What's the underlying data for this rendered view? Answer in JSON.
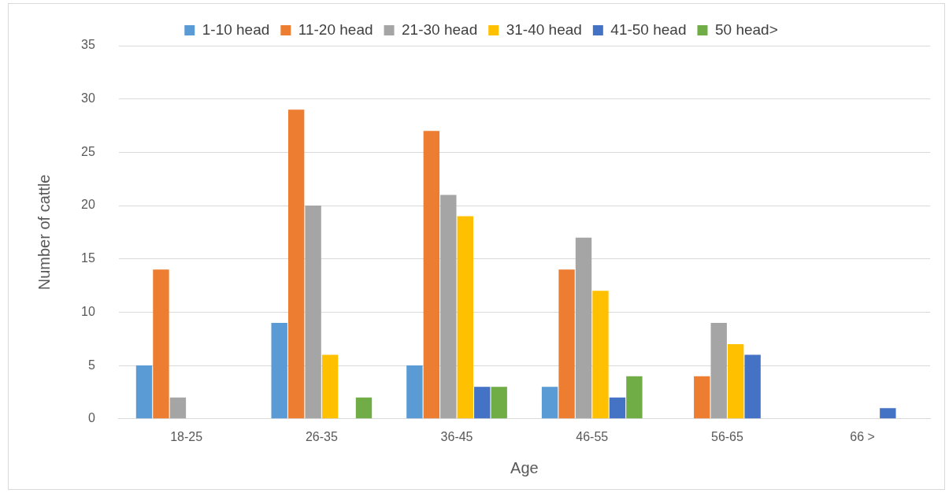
{
  "chart_data": {
    "type": "bar",
    "xlabel": "Age",
    "ylabel": "Number of cattle",
    "categories": [
      "18-25",
      "26-35",
      "36-45",
      "46-55",
      "56-65",
      "66 >"
    ],
    "series": [
      {
        "name": "1-10 head",
        "color": "#5b9bd5",
        "values": [
          5,
          9,
          5,
          3,
          0,
          0
        ]
      },
      {
        "name": "11-20 head",
        "color": "#ed7d31",
        "values": [
          14,
          29,
          27,
          14,
          4,
          0
        ]
      },
      {
        "name": "21-30 head",
        "color": "#a5a5a5",
        "values": [
          2,
          20,
          21,
          17,
          9,
          0
        ]
      },
      {
        "name": "31-40 head",
        "color": "#ffc000",
        "values": [
          0,
          6,
          19,
          12,
          7,
          0
        ]
      },
      {
        "name": "41-50 head",
        "color": "#4472c4",
        "values": [
          0,
          0,
          3,
          2,
          6,
          1
        ]
      },
      {
        "name": "50 head>",
        "color": "#70ad47",
        "values": [
          0,
          2,
          3,
          4,
          0,
          0
        ]
      }
    ],
    "ylim": [
      0,
      35
    ],
    "yticks": [
      0,
      5,
      10,
      15,
      20,
      25,
      30,
      35
    ],
    "grid": "y",
    "legend": "top"
  }
}
